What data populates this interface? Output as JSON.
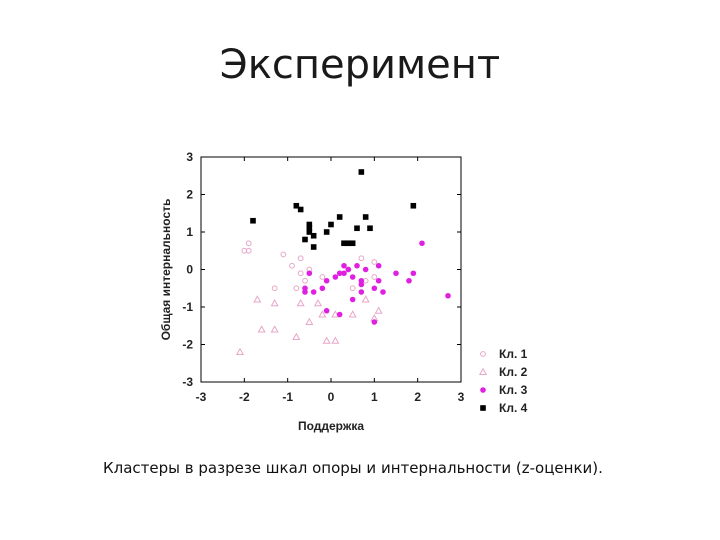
{
  "slide": {
    "title": "Эксперимент",
    "caption": "Кластеры в разрезе шкал опоры и интернальности (z-оценки)."
  },
  "chart_data": {
    "type": "scatter",
    "xlabel": "Поддержка",
    "ylabel": "Общая интернальность",
    "xlim": [
      -3,
      3
    ],
    "ylim": [
      -3,
      3
    ],
    "xticks": [
      "-3",
      "-2",
      "-1",
      "0",
      "1",
      "2",
      "3"
    ],
    "yticks": [
      "3",
      "2",
      "1",
      "0",
      "-1",
      "-2",
      "-3"
    ],
    "grid": false,
    "legend_position": "right-bottom",
    "series": [
      {
        "name": "Кл. 1",
        "marker": "open-circle",
        "color": "#e8a6c8",
        "points": [
          [
            -1.9,
            0.7
          ],
          [
            -2.0,
            0.5
          ],
          [
            -1.9,
            0.5
          ],
          [
            -1.1,
            0.4
          ],
          [
            -0.7,
            0.3
          ],
          [
            -0.9,
            0.1
          ],
          [
            -0.7,
            -0.1
          ],
          [
            -0.5,
            0.0
          ],
          [
            -0.6,
            -0.3
          ],
          [
            -0.2,
            -0.2
          ],
          [
            0.4,
            0.0
          ],
          [
            0.7,
            0.3
          ],
          [
            1.0,
            0.2
          ],
          [
            -1.3,
            -0.5
          ],
          [
            -0.8,
            -0.5
          ],
          [
            0.5,
            -0.5
          ],
          [
            0.8,
            -0.3
          ],
          [
            1.0,
            -0.2
          ]
        ]
      },
      {
        "name": "Кл. 2",
        "marker": "open-triangle",
        "color": "#e8a6c8",
        "points": [
          [
            -2.1,
            -2.2
          ],
          [
            -1.7,
            -0.8
          ],
          [
            -1.6,
            -1.6
          ],
          [
            -1.3,
            -0.9
          ],
          [
            -1.3,
            -1.6
          ],
          [
            -0.8,
            -1.8
          ],
          [
            -0.7,
            -0.9
          ],
          [
            -0.5,
            -1.4
          ],
          [
            -0.3,
            -0.9
          ],
          [
            -0.2,
            -1.2
          ],
          [
            -0.1,
            -1.9
          ],
          [
            0.1,
            -1.9
          ],
          [
            0.1,
            -1.2
          ],
          [
            0.5,
            -1.2
          ],
          [
            0.8,
            -0.8
          ],
          [
            1.0,
            -1.3
          ],
          [
            1.1,
            -1.1
          ]
        ]
      },
      {
        "name": "Кл. 3",
        "marker": "filled-circle",
        "color": "#e020e0",
        "points": [
          [
            -0.5,
            -0.1
          ],
          [
            -0.6,
            -0.5
          ],
          [
            -0.6,
            -0.6
          ],
          [
            -0.4,
            -0.6
          ],
          [
            -0.2,
            -0.5
          ],
          [
            -0.1,
            -0.3
          ],
          [
            0.1,
            -0.2
          ],
          [
            0.3,
            0.1
          ],
          [
            0.2,
            -0.1
          ],
          [
            0.4,
            0.0
          ],
          [
            0.3,
            -0.1
          ],
          [
            0.5,
            -0.2
          ],
          [
            0.6,
            0.1
          ],
          [
            0.7,
            -0.3
          ],
          [
            0.7,
            -0.4
          ],
          [
            0.7,
            -0.6
          ],
          [
            0.5,
            -0.8
          ],
          [
            0.8,
            0.0
          ],
          [
            1.0,
            -0.5
          ],
          [
            1.1,
            -0.3
          ],
          [
            1.1,
            0.1
          ],
          [
            1.2,
            -0.6
          ],
          [
            1.5,
            -0.1
          ],
          [
            1.8,
            -0.3
          ],
          [
            1.9,
            -0.1
          ],
          [
            2.1,
            0.7
          ],
          [
            2.7,
            -0.7
          ],
          [
            -0.1,
            -1.1
          ],
          [
            0.2,
            -1.2
          ],
          [
            1.0,
            -1.4
          ]
        ]
      },
      {
        "name": "Кл. 4",
        "marker": "filled-square",
        "color": "#000000",
        "points": [
          [
            -1.8,
            1.3
          ],
          [
            -0.8,
            1.7
          ],
          [
            -0.7,
            1.6
          ],
          [
            -0.5,
            1.2
          ],
          [
            -0.5,
            1.0
          ],
          [
            -0.4,
            0.9
          ],
          [
            -0.4,
            0.6
          ],
          [
            -0.6,
            0.8
          ],
          [
            -0.5,
            1.1
          ],
          [
            -0.1,
            1.0
          ],
          [
            0.0,
            1.2
          ],
          [
            0.2,
            1.4
          ],
          [
            0.3,
            0.7
          ],
          [
            0.4,
            0.7
          ],
          [
            0.5,
            0.7
          ],
          [
            0.6,
            1.1
          ],
          [
            0.7,
            2.6
          ],
          [
            0.8,
            1.4
          ],
          [
            0.9,
            1.1
          ],
          [
            1.9,
            1.7
          ]
        ]
      }
    ]
  }
}
